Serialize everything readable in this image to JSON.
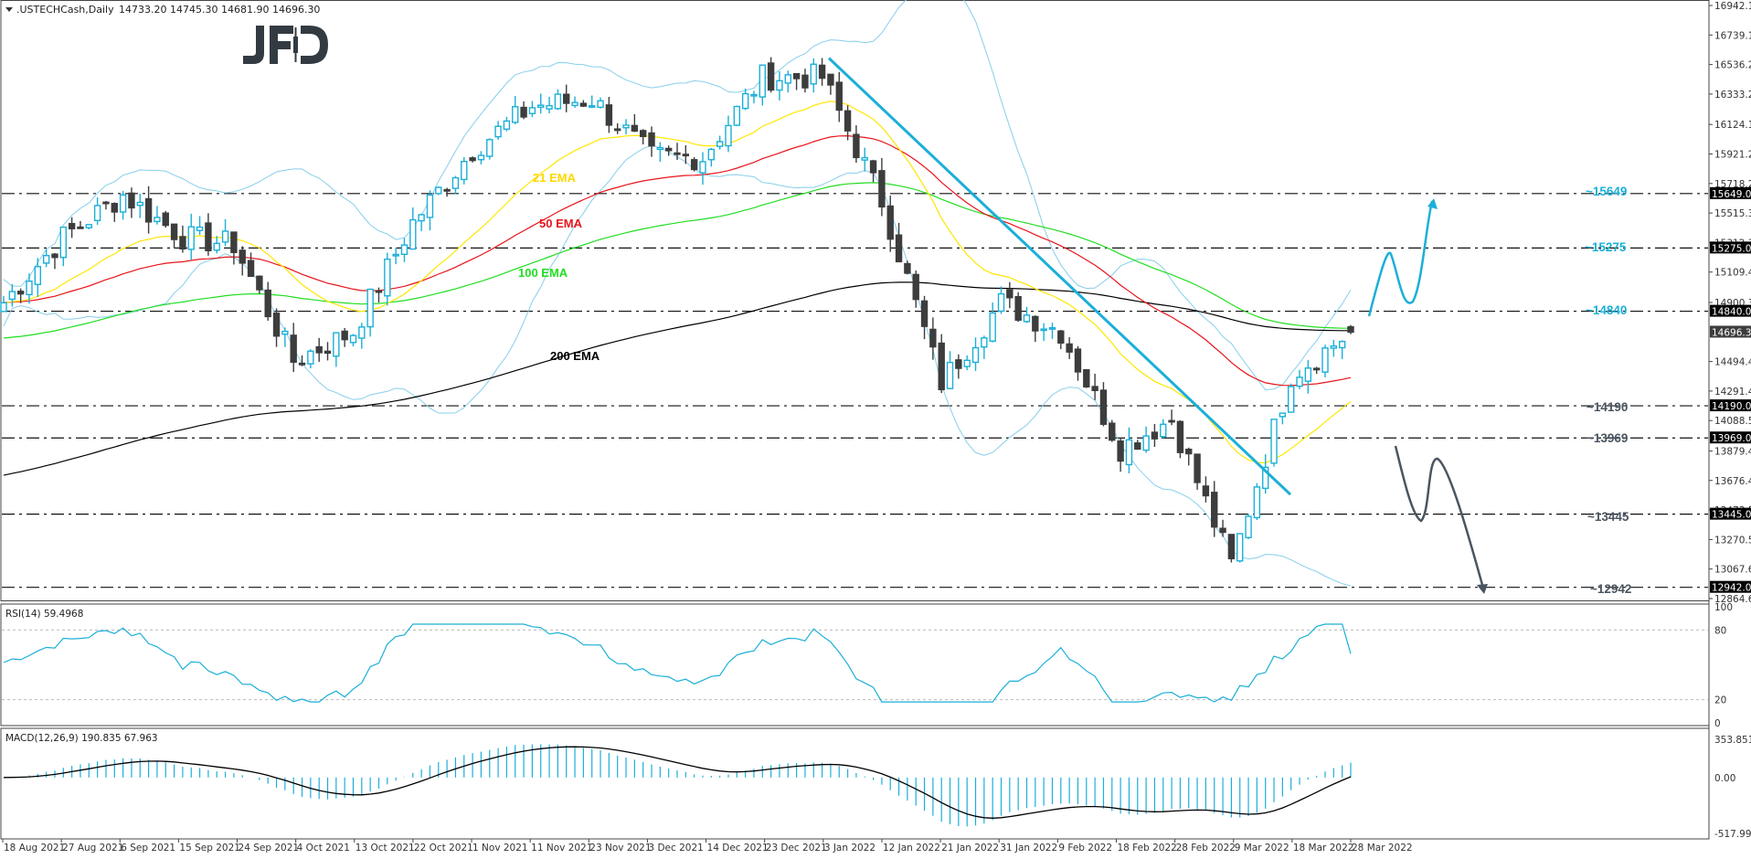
{
  "header": {
    "symbol": ".USTECHCash,Daily",
    "ohlc": "14733.20 14745.30 14681.90 14696.30",
    "logo": "JFD"
  },
  "price_axis": {
    "ticks": [
      "16942.10",
      "16739.15",
      "16536.20",
      "16333.25",
      "16124.15",
      "15921.20",
      "15718.25",
      "15515.30",
      "15312.35",
      "15109.40",
      "14900.30",
      "14494.40",
      "14291.45",
      "14088.50",
      "13879.40",
      "13676.45",
      "13473.50",
      "13270.55",
      "13067.60",
      "12864.65"
    ],
    "tags": [
      {
        "label": "15649.00",
        "value": 15649,
        "style": "level"
      },
      {
        "label": "15275.00",
        "value": 15275,
        "style": "level"
      },
      {
        "label": "14840.00",
        "value": 14840,
        "style": "level"
      },
      {
        "label": "14696.30",
        "value": 14696.3,
        "style": "current"
      },
      {
        "label": "14190.00",
        "value": 14190,
        "style": "level"
      },
      {
        "label": "13969.00",
        "value": 13969,
        "style": "level"
      },
      {
        "label": "13445.00",
        "value": 13445,
        "style": "level"
      },
      {
        "label": "12942.00",
        "value": 12942,
        "style": "level"
      }
    ]
  },
  "rsi_panel": {
    "title": "RSI(14) 59.4968",
    "ticks": [
      "100",
      "80",
      "20",
      "0"
    ]
  },
  "macd_panel": {
    "title": "MACD(12,26,9) 190.835 67.963",
    "ticks": [
      "353.851",
      "0.00",
      "-517.995"
    ]
  },
  "date_axis": {
    "labels": [
      "18 Aug 2021",
      "27 Aug 2021",
      "6 Sep 2021",
      "15 Sep 2021",
      "24 Sep 2021",
      "4 Oct 2021",
      "13 Oct 2021",
      "22 Oct 2021",
      "1 Nov 2021",
      "11 Nov 2021",
      "23 Nov 2021",
      "3 Dec 2021",
      "14 Dec 2021",
      "23 Dec 2021",
      "3 Jan 2022",
      "12 Jan 2022",
      "21 Jan 2022",
      "31 Jan 2022",
      "9 Feb 2022",
      "18 Feb 2022",
      "28 Feb 2022",
      "9 Mar 2022",
      "18 Mar 2022",
      "28 Mar 2022"
    ]
  },
  "annotations": {
    "ema_labels": [
      {
        "text": "21 EMA",
        "color": "#FFD700"
      },
      {
        "text": "50 EMA",
        "color": "#E8141B"
      },
      {
        "text": "100 EMA",
        "color": "#22DD22"
      },
      {
        "text": "200 EMA",
        "color": "#000000"
      }
    ],
    "levels": [
      {
        "text": "~15649",
        "value": 15649,
        "color": "#1BAFD8"
      },
      {
        "text": "~15275",
        "value": 15275,
        "color": "#1BAFD8"
      },
      {
        "text": "~14840",
        "value": 14840,
        "color": "#1BAFD8"
      },
      {
        "text": "~14190",
        "value": 14190,
        "color": "#4A5560"
      },
      {
        "text": "~13969",
        "value": 13969,
        "color": "#4A5560"
      },
      {
        "text": "~13445",
        "value": 13445,
        "color": "#4A5560"
      },
      {
        "text": "~12942",
        "value": 12942,
        "color": "#4A5560"
      }
    ]
  },
  "colors": {
    "bull": "#1BAFD8",
    "bear": "#3D3D3D",
    "bollinger": "#87CEEB",
    "ema21": "#FFE600",
    "ema50": "#E8141B",
    "ema100": "#22DD22",
    "ema200": "#000000",
    "trendline": "#1BAFD8",
    "rsi": "#1BAFD8",
    "macd_hist": "#1BAFD8",
    "macd_signal": "#000000"
  },
  "chart_data": {
    "type": "candlestick",
    "title": ".USTECHCash,Daily",
    "xlabel": "",
    "ylabel": "",
    "ylim": [
      12864.65,
      16942.1
    ],
    "last_bar": {
      "open": 14733.2,
      "high": 14745.3,
      "low": 14681.9,
      "close": 14696.3
    },
    "x_range": [
      "18 Aug 2021",
      "28 Mar 2022"
    ],
    "close_path": [
      {
        "date": "18 Aug 2021",
        "close": 14900
      },
      {
        "date": "27 Aug 2021",
        "close": 15350
      },
      {
        "date": "6 Sep 2021",
        "close": 15640
      },
      {
        "date": "15 Sep 2021",
        "close": 15350
      },
      {
        "date": "24 Sep 2021",
        "close": 15300
      },
      {
        "date": "4 Oct 2021",
        "close": 14500
      },
      {
        "date": "13 Oct 2021",
        "close": 14700
      },
      {
        "date": "22 Oct 2021",
        "close": 15450
      },
      {
        "date": "1 Nov 2021",
        "close": 15950
      },
      {
        "date": "11 Nov 2021",
        "close": 16250
      },
      {
        "date": "23 Nov 2021",
        "close": 16300
      },
      {
        "date": "3 Dec 2021",
        "close": 15900
      },
      {
        "date": "14 Dec 2021",
        "close": 15900
      },
      {
        "date": "23 Dec 2021",
        "close": 16450
      },
      {
        "date": "3 Jan 2022",
        "close": 16450
      },
      {
        "date": "12 Jan 2022",
        "close": 15600
      },
      {
        "date": "21 Jan 2022",
        "close": 14350
      },
      {
        "date": "31 Jan 2022",
        "close": 14900
      },
      {
        "date": "9 Feb 2022",
        "close": 14700
      },
      {
        "date": "18 Feb 2022",
        "close": 13900
      },
      {
        "date": "28 Feb 2022",
        "close": 14100
      },
      {
        "date": "9 Mar 2022",
        "close": 13100
      },
      {
        "date": "18 Mar 2022",
        "close": 14400
      },
      {
        "date": "28 Mar 2022",
        "close": 14696.3
      }
    ],
    "indicators": [
      "21 EMA",
      "50 EMA",
      "100 EMA",
      "200 EMA",
      "Bollinger Bands",
      "RSI(14)",
      "MACD(12,26,9)"
    ],
    "horizontal_levels": [
      15649,
      15275,
      14840,
      14190,
      13969,
      13445,
      12942
    ],
    "trendline": {
      "from": {
        "date": "3 Jan 2022",
        "price": 16580
      },
      "to": {
        "date": "10 Mar 2022",
        "price": 13580
      }
    },
    "scenarios": [
      {
        "direction": "up",
        "path": [
          14840,
          15275,
          14900,
          15649
        ],
        "color": "#1BAFD8"
      },
      {
        "direction": "down",
        "path": [
          13969,
          13445,
          13880,
          12942
        ],
        "color": "#4A5560"
      }
    ],
    "rsi": {
      "value": 59.4968,
      "levels": [
        20,
        80
      ],
      "ylim": [
        0,
        100
      ]
    },
    "macd": {
      "main": 190.835,
      "signal": 67.963,
      "ylim": [
        -517.995,
        353.851
      ]
    }
  }
}
